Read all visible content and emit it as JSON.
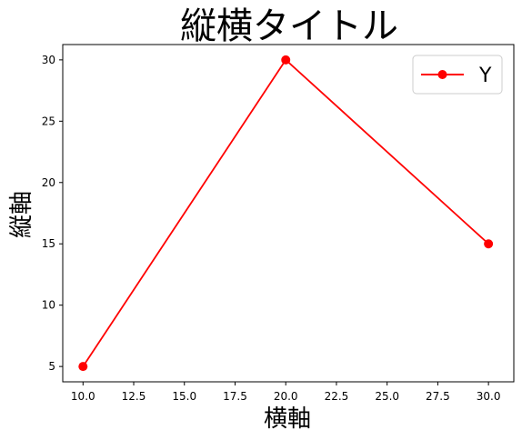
{
  "chart_data": {
    "type": "line",
    "title": "縦横タイトル",
    "xlabel": "横軸",
    "ylabel": "縦軸",
    "x": [
      10,
      20,
      30
    ],
    "series": [
      {
        "name": "Y",
        "values": [
          5,
          30,
          15
        ],
        "color": "#ff0000",
        "marker": "circle"
      }
    ],
    "xlim": [
      9,
      31.25
    ],
    "ylim": [
      3.75,
      31.25
    ],
    "xticks": [
      10.0,
      12.5,
      15.0,
      17.5,
      20.0,
      22.5,
      25.0,
      27.5,
      30.0
    ],
    "xtick_labels": [
      "10.0",
      "12.5",
      "15.0",
      "17.5",
      "20.0",
      "22.5",
      "25.0",
      "27.5",
      "30.0"
    ],
    "yticks": [
      5,
      10,
      15,
      20,
      25,
      30
    ],
    "ytick_labels": [
      "5",
      "10",
      "15",
      "20",
      "25",
      "30"
    ],
    "grid": false,
    "legend_position": "top-right"
  }
}
